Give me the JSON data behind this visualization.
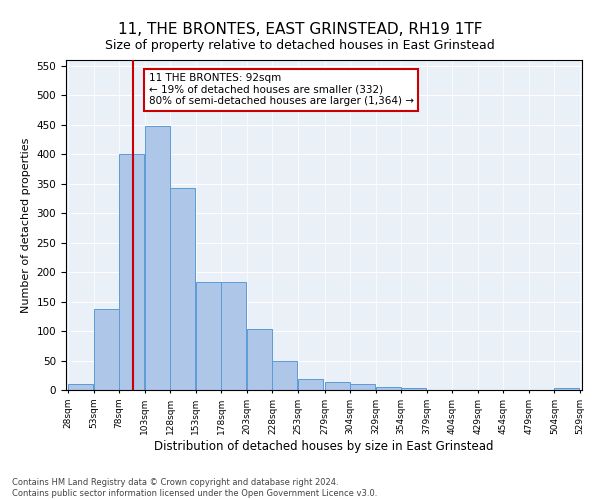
{
  "title": "11, THE BRONTES, EAST GRINSTEAD, RH19 1TF",
  "subtitle": "Size of property relative to detached houses in East Grinstead",
  "xlabel": "Distribution of detached houses by size in East Grinstead",
  "ylabel": "Number of detached properties",
  "footnote1": "Contains HM Land Registry data © Crown copyright and database right 2024.",
  "footnote2": "Contains public sector information licensed under the Open Government Licence v3.0.",
  "bins": [
    28,
    53,
    78,
    103,
    128,
    153,
    178,
    203,
    228,
    253,
    279,
    304,
    329,
    354,
    379,
    404,
    429,
    454,
    479,
    504,
    529
  ],
  "bin_labels": [
    "28sqm",
    "53sqm",
    "78sqm",
    "103sqm",
    "128sqm",
    "153sqm",
    "178sqm",
    "203sqm",
    "228sqm",
    "253sqm",
    "279sqm",
    "304sqm",
    "329sqm",
    "354sqm",
    "379sqm",
    "404sqm",
    "429sqm",
    "454sqm",
    "479sqm",
    "504sqm",
    "529sqm"
  ],
  "values": [
    10,
    138,
    400,
    448,
    343,
    183,
    183,
    103,
    50,
    18,
    13,
    10,
    5,
    4,
    0,
    0,
    0,
    0,
    0,
    4
  ],
  "bar_color": "#aec6e8",
  "bar_edge_color": "#5b9bd5",
  "property_size": 92,
  "property_label": "11 THE BRONTES: 92sqm",
  "annotation_line1": "← 19% of detached houses are smaller (332)",
  "annotation_line2": "80% of semi-detached houses are larger (1,364) →",
  "vline_color": "#cc0000",
  "ylim": [
    0,
    560
  ],
  "yticks": [
    0,
    50,
    100,
    150,
    200,
    250,
    300,
    350,
    400,
    450,
    500,
    550
  ],
  "bg_color": "#eaf0f8",
  "title_fontsize": 11,
  "subtitle_fontsize": 9,
  "ylabel_fontsize": 8,
  "xlabel_fontsize": 8.5
}
